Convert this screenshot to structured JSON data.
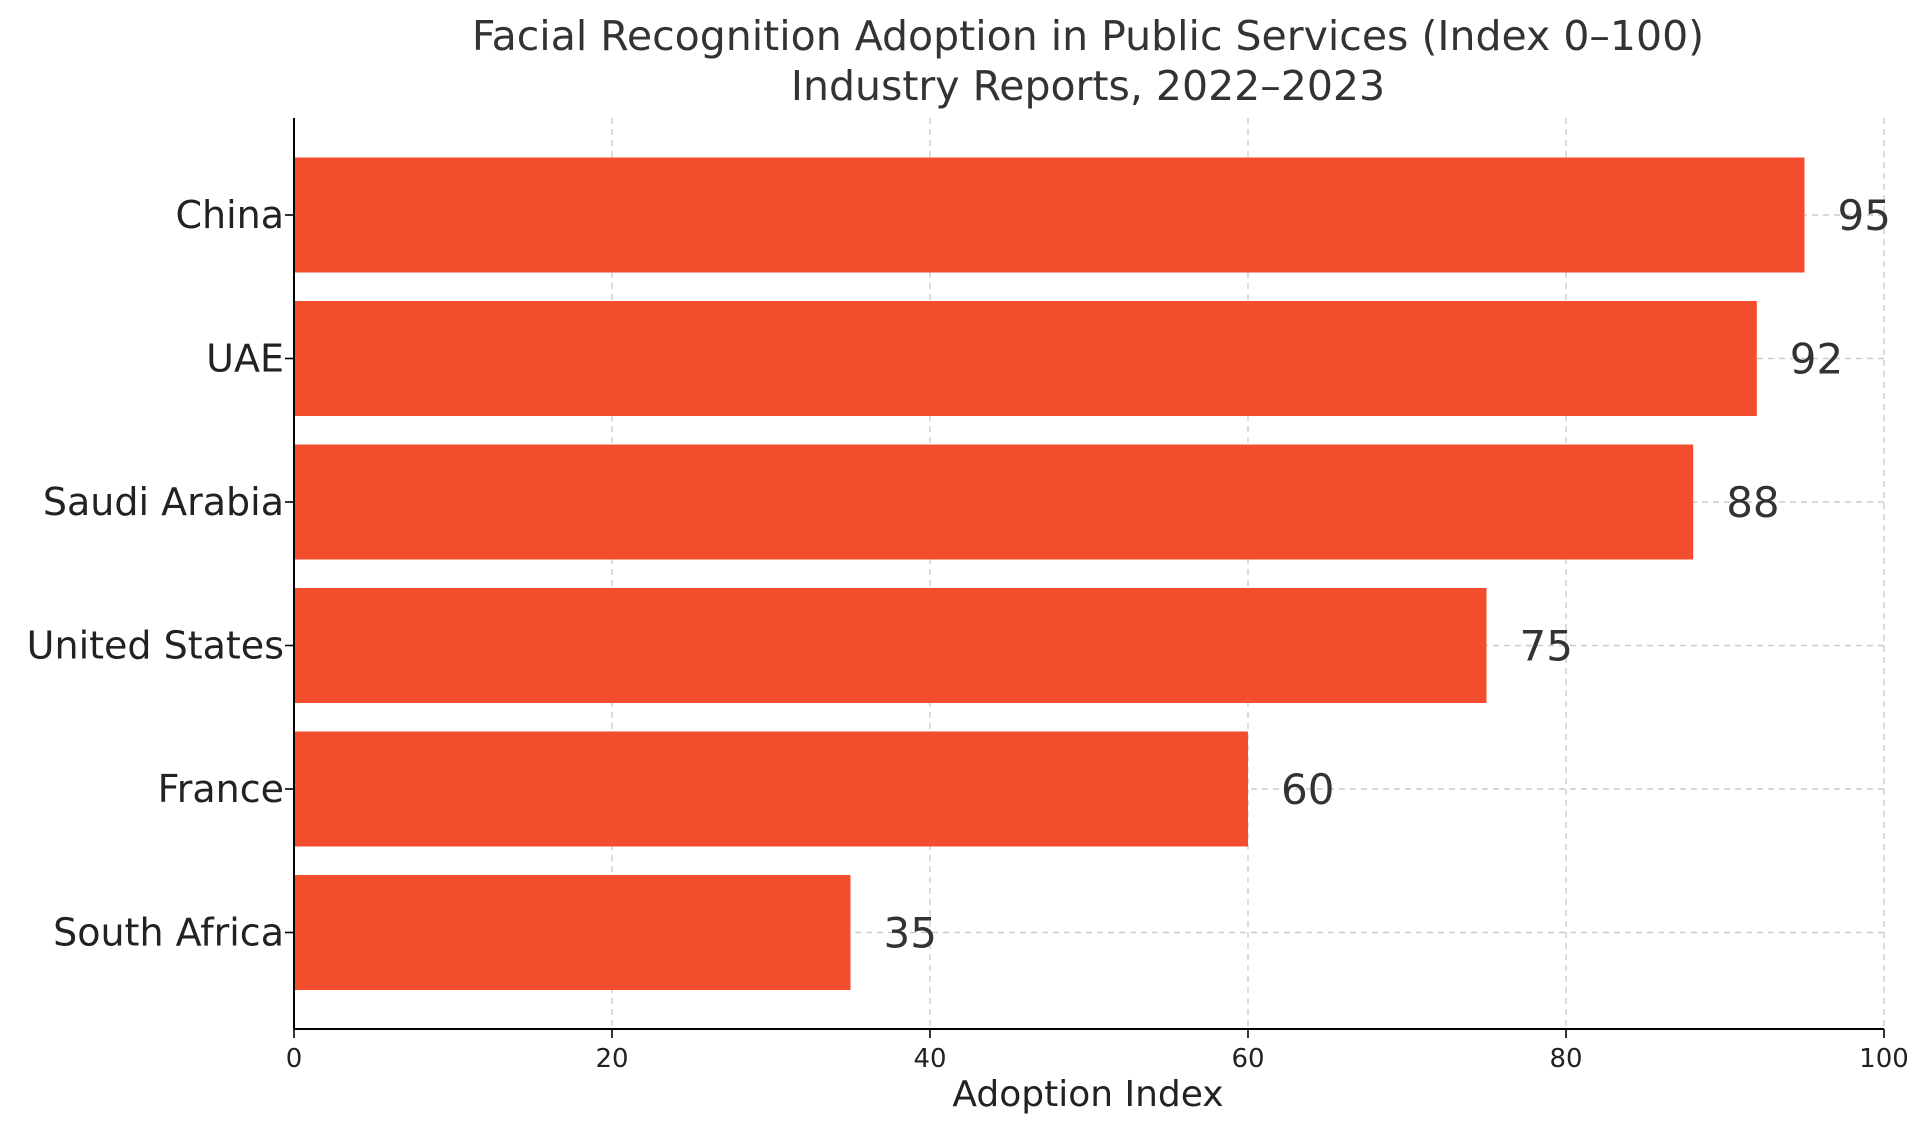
{
  "chart_data": {
    "type": "bar",
    "orientation": "horizontal",
    "title": "Facial Recognition Adoption in Public Services (Index 0–100)",
    "subtitle": "Industry Reports, 2022–2023",
    "xlabel": "Adoption Index",
    "ylabel": "",
    "xlim": [
      0,
      100
    ],
    "xticks": [
      0,
      20,
      40,
      60,
      80,
      100
    ],
    "categories": [
      "China",
      "UAE",
      "Saudi Arabia",
      "United States",
      "France",
      "South Africa"
    ],
    "values": [
      95,
      92,
      88,
      75,
      60,
      35
    ],
    "data_labels": [
      "95",
      "92",
      "88",
      "75",
      "60",
      "35"
    ],
    "bar_color": "#f24e2e",
    "grid": true,
    "grid_style": "dashed"
  }
}
